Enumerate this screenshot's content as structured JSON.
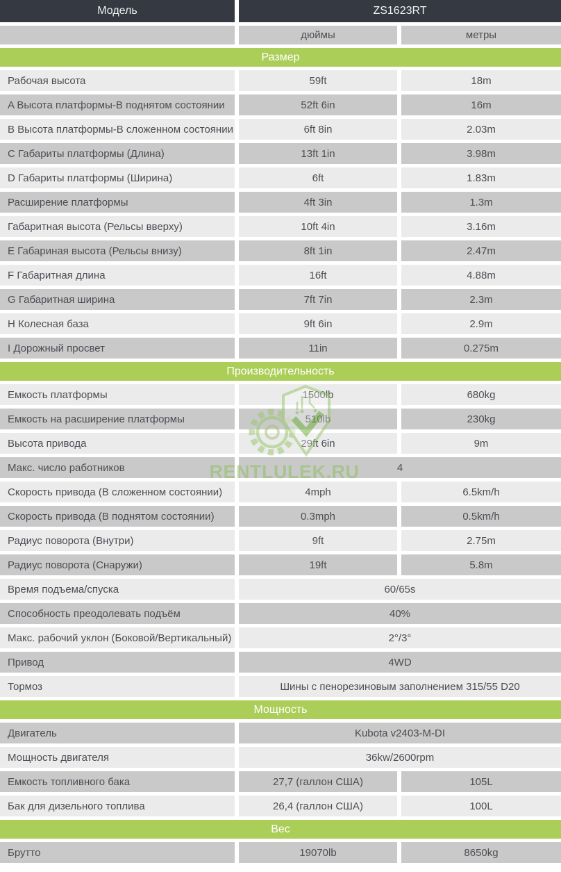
{
  "header": {
    "model_label": "Модель",
    "model_value": "ZS1623RT",
    "units_inches": "дюймы",
    "units_meters": "метры"
  },
  "watermark": {
    "text": "RENTLULEK.RU",
    "logo": "rentlulek-logo"
  },
  "colors": {
    "header_dark": "#353a42",
    "section_green": "#abce58",
    "row_light": "#ebebeb",
    "row_gray": "#c9c9c9",
    "text": "#4b4e53",
    "watermark_green": "#8fbf62"
  },
  "table": {
    "sections": [
      {
        "title": "Размер",
        "rows": [
          {
            "label": "Рабочая высота",
            "inches": "59ft",
            "meters": "18m"
          },
          {
            "label": "A Высота платформы-В поднятом состоянии",
            "inches": "52ft 6in",
            "meters": "16m"
          },
          {
            "label": "B Высота платформы-В сложенном состоянии",
            "inches": "6ft 8in",
            "meters": "2.03m"
          },
          {
            "label": "C Габариты платформы (Длина)",
            "inches": "13ft 1in",
            "meters": "3.98m"
          },
          {
            "label": "D Габариты платформы (Ширина)",
            "inches": "6ft",
            "meters": "1.83m"
          },
          {
            "label": "Расширение платформы",
            "inches": "4ft 3in",
            "meters": "1.3m"
          },
          {
            "label": "Габаритная высота (Рельсы вверху)",
            "inches": "10ft 4in",
            "meters": "3.16m"
          },
          {
            "label": "E Габариная высота (Рельсы внизу)",
            "inches": "8ft 1in",
            "meters": "2.47m"
          },
          {
            "label": "F Габаритная длина",
            "inches": "16ft",
            "meters": "4.88m"
          },
          {
            "label": "G Габаритная ширина",
            "inches": "7ft 7in",
            "meters": "2.3m"
          },
          {
            "label": "H Колесная база",
            "inches": "9ft 6in",
            "meters": "2.9m"
          },
          {
            "label": "I Дорожный просвет",
            "inches": "11in",
            "meters": "0.275m"
          }
        ]
      },
      {
        "title": "Производительность",
        "rows": [
          {
            "label": "Емкость платформы",
            "inches": "1500lb",
            "meters": "680kg"
          },
          {
            "label": "Емкость на расширение платформы",
            "inches": "510lb",
            "meters": "230kg"
          },
          {
            "label": "Высота привода",
            "inches": "29ft 6in",
            "meters": "9m"
          },
          {
            "label": "Макс. число работников",
            "merged": "4"
          },
          {
            "label": "Скорость привода (В сложенном состоянии)",
            "inches": "4mph",
            "meters": "6.5km/h"
          },
          {
            "label": "Скорость привода (В поднятом состоянии)",
            "inches": "0.3mph",
            "meters": "0.5km/h"
          },
          {
            "label": "Радиус поворота (Внутри)",
            "inches": "9ft",
            "meters": "2.75m"
          },
          {
            "label": "Радиус поворота (Снаружи)",
            "inches": "19ft",
            "meters": "5.8m"
          },
          {
            "label": "Время подъема/спуска",
            "merged": "60/65s"
          },
          {
            "label": "Способность преодолевать подъём",
            "merged": "40%"
          },
          {
            "label": "Макс. рабочий уклон (Боковой/Вертикальный)",
            "merged": "2°/3°"
          },
          {
            "label": "Привод",
            "merged": "4WD"
          },
          {
            "label": "Тормоз",
            "merged": "Шины с пенорезиновым заполнением 315/55 D20"
          }
        ]
      },
      {
        "title": "Мощность",
        "rows": [
          {
            "label": "Двигатель",
            "merged": "Kubota v2403-M-DI"
          },
          {
            "label": "Мощность двигателя",
            "merged": "36kw/2600rpm"
          },
          {
            "label": "Емкость топливного бака",
            "inches": "27,7 (галлон США)",
            "meters": "105L"
          },
          {
            "label": "Бак для дизельного топлива",
            "inches": "26,4 (галлон США)",
            "meters": "100L"
          }
        ]
      },
      {
        "title": "Вес",
        "rows": [
          {
            "label": "Брутто",
            "inches": "19070lb",
            "meters": "8650kg"
          }
        ]
      }
    ]
  }
}
